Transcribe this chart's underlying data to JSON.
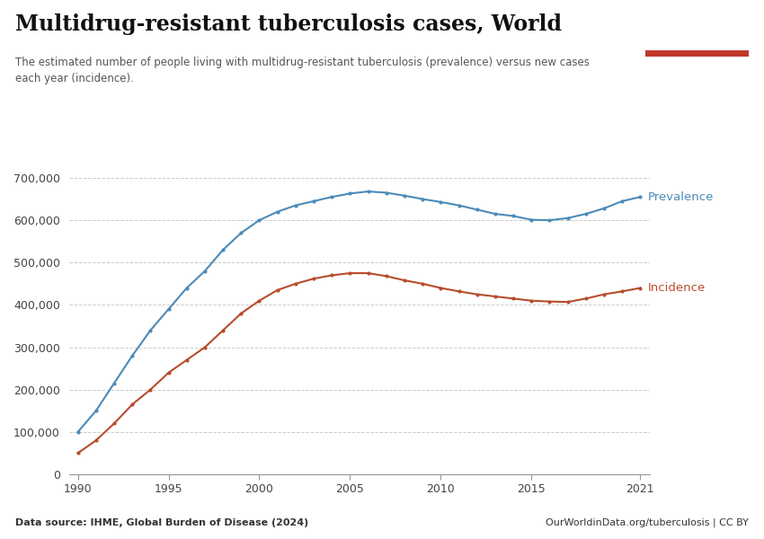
{
  "title": "Multidrug-resistant tuberculosis cases, World",
  "subtitle": "The estimated number of people living with multidrug-resistant tuberculosis (prevalence) versus new cases\neach year (incidence).",
  "datasource": "Data source: IHME, Global Burden of Disease (2024)",
  "website": "OurWorldinData.org/tuberculosis | CC BY",
  "years": [
    1990,
    1991,
    1992,
    1993,
    1994,
    1995,
    1996,
    1997,
    1998,
    1999,
    2000,
    2001,
    2002,
    2003,
    2004,
    2005,
    2006,
    2007,
    2008,
    2009,
    2010,
    2011,
    2012,
    2013,
    2014,
    2015,
    2016,
    2017,
    2018,
    2019,
    2020,
    2021
  ],
  "prevalence": [
    100000,
    150000,
    215000,
    280000,
    340000,
    390000,
    440000,
    480000,
    530000,
    570000,
    600000,
    620000,
    635000,
    645000,
    655000,
    663000,
    668000,
    665000,
    658000,
    650000,
    643000,
    635000,
    625000,
    615000,
    610000,
    601000,
    600000,
    605000,
    615000,
    628000,
    645000,
    655000
  ],
  "incidence": [
    50000,
    80000,
    120000,
    165000,
    200000,
    240000,
    270000,
    300000,
    340000,
    380000,
    410000,
    435000,
    450000,
    462000,
    470000,
    475000,
    475000,
    468000,
    458000,
    450000,
    440000,
    432000,
    425000,
    420000,
    415000,
    410000,
    408000,
    407000,
    415000,
    425000,
    432000,
    440000
  ],
  "prevalence_color": "#4c8bb8",
  "incidence_color": "#b84c2c",
  "ylim": [
    0,
    700000
  ],
  "yticks": [
    0,
    100000,
    200000,
    300000,
    400000,
    500000,
    600000,
    700000
  ],
  "xticks": [
    1990,
    1995,
    2000,
    2005,
    2010,
    2015,
    2021
  ],
  "background_color": "#ffffff",
  "logo_bg": "#1a2c4e",
  "logo_red": "#c0392b"
}
